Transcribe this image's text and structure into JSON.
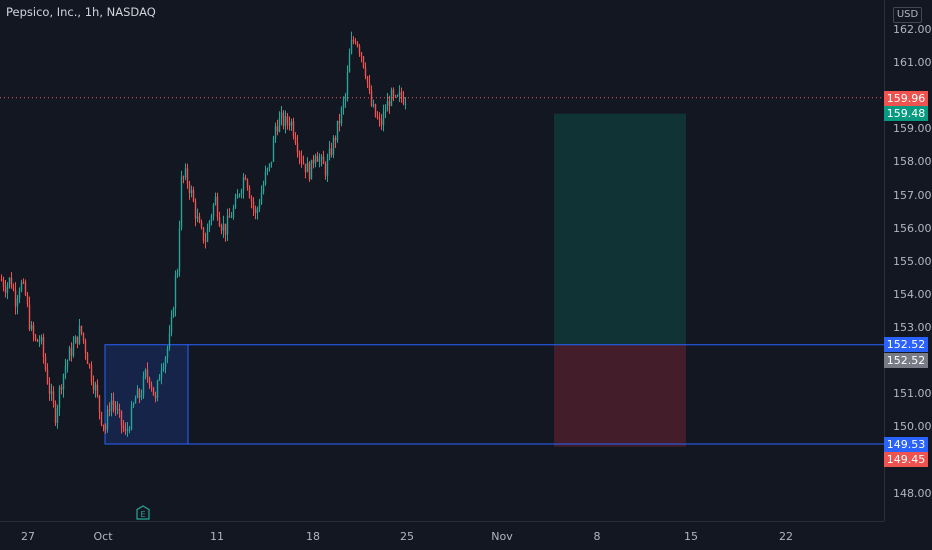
{
  "title": "Pepsico, Inc., 1h, NASDAQ",
  "currency": "USD",
  "earnings_marker": "E",
  "chart_data": {
    "type": "candlestick",
    "symbol": "Pepsico, Inc.",
    "interval": "1h",
    "exchange": "NASDAQ",
    "ylim": [
      147.6,
      162.6
    ],
    "y_ticks": [
      "162.00",
      "161.00",
      "159.00",
      "158.00",
      "157.00",
      "156.00",
      "155.00",
      "154.00",
      "153.00",
      "151.00",
      "150.00",
      "148.00"
    ],
    "x_ticks": [
      "27",
      "Oct",
      "11",
      "18",
      "25",
      "Nov",
      "8",
      "15",
      "22"
    ],
    "last_price": 159.96,
    "last_price_label": "159.96",
    "price_labels": {
      "take_profit": "159.48",
      "zone_top": "152.52",
      "entry": "152.52",
      "zone_bottom": "149.53",
      "stop_loss": "149.45"
    },
    "demand_zone": {
      "top": 152.52,
      "bottom": 149.53
    },
    "long_position": {
      "entry": 152.52,
      "take_profit": 159.48,
      "stop_loss": 149.45
    },
    "colors": {
      "up": "#26a69a",
      "down": "#ef5350",
      "zone": "#2962ff",
      "background": "#131722"
    },
    "path": [
      [
        0,
        154.5
      ],
      [
        5,
        154.3
      ],
      [
        10,
        154.5
      ],
      [
        15,
        153.9
      ],
      [
        20,
        154.4
      ],
      [
        25,
        154.0
      ],
      [
        30,
        153.0
      ],
      [
        35,
        152.6
      ],
      [
        40,
        152.7
      ],
      [
        45,
        151.8
      ],
      [
        50,
        151.0
      ],
      [
        55,
        150.4
      ],
      [
        60,
        151.3
      ],
      [
        65,
        151.9
      ],
      [
        70,
        152.3
      ],
      [
        75,
        152.6
      ],
      [
        80,
        153.0
      ],
      [
        85,
        152.4
      ],
      [
        90,
        151.7
      ],
      [
        95,
        151.2
      ],
      [
        100,
        150.4
      ],
      [
        105,
        150.0
      ],
      [
        110,
        150.9
      ],
      [
        115,
        150.6
      ],
      [
        120,
        150.2
      ],
      [
        125,
        149.8
      ],
      [
        130,
        150.3
      ],
      [
        135,
        150.9
      ],
      [
        140,
        151.0
      ],
      [
        145,
        151.6
      ],
      [
        150,
        151.5
      ],
      [
        155,
        150.8
      ],
      [
        160,
        151.9
      ],
      [
        165,
        152.2
      ],
      [
        170,
        152.8
      ],
      [
        175,
        154.5
      ],
      [
        178,
        155.0
      ],
      [
        180,
        157.4
      ],
      [
        185,
        157.6
      ],
      [
        190,
        157.2
      ],
      [
        195,
        156.5
      ],
      [
        200,
        155.9
      ],
      [
        205,
        155.7
      ],
      [
        210,
        156.4
      ],
      [
        215,
        156.9
      ],
      [
        220,
        156.2
      ],
      [
        225,
        156.0
      ],
      [
        230,
        156.4
      ],
      [
        235,
        156.7
      ],
      [
        240,
        157.3
      ],
      [
        245,
        157.7
      ],
      [
        250,
        157.0
      ],
      [
        255,
        156.4
      ],
      [
        260,
        157.0
      ],
      [
        265,
        157.6
      ],
      [
        270,
        157.9
      ],
      [
        275,
        159.1
      ],
      [
        280,
        159.3
      ],
      [
        285,
        159.2
      ],
      [
        290,
        159.3
      ],
      [
        295,
        158.8
      ],
      [
        300,
        158.2
      ],
      [
        305,
        157.9
      ],
      [
        310,
        157.7
      ],
      [
        315,
        158.4
      ],
      [
        320,
        158.0
      ],
      [
        325,
        157.8
      ],
      [
        330,
        158.3
      ],
      [
        335,
        158.8
      ],
      [
        340,
        159.4
      ],
      [
        345,
        160.0
      ],
      [
        350,
        161.5
      ],
      [
        355,
        161.8
      ],
      [
        360,
        161.4
      ],
      [
        365,
        160.8
      ],
      [
        370,
        159.8
      ],
      [
        375,
        159.4
      ],
      [
        380,
        159.1
      ],
      [
        385,
        159.6
      ],
      [
        390,
        160.0
      ],
      [
        395,
        159.8
      ],
      [
        400,
        160.0
      ],
      [
        405,
        159.96
      ]
    ]
  }
}
